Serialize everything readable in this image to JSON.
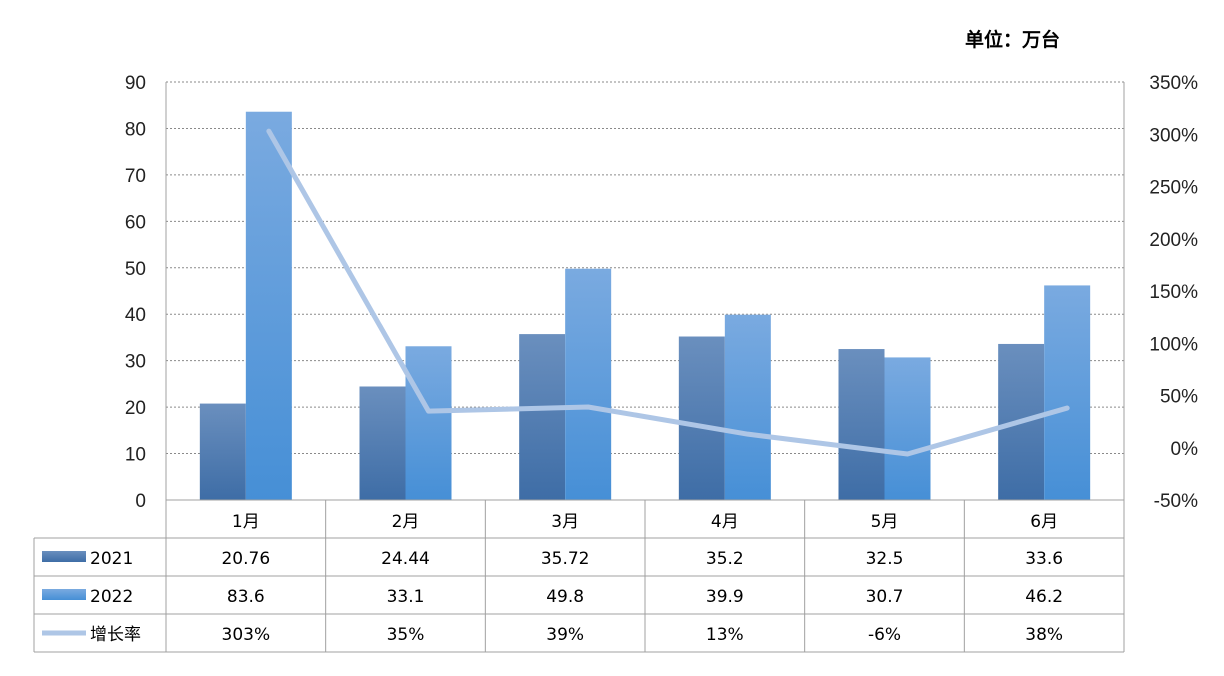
{
  "chart_data": {
    "type": "bar",
    "unit_label": "单位：万台",
    "categories": [
      "1月",
      "2月",
      "3月",
      "4月",
      "5月",
      "6月"
    ],
    "series": [
      {
        "name": "2021",
        "kind": "bar",
        "color": "#4472A8",
        "values": [
          20.76,
          24.44,
          35.72,
          35.2,
          32.5,
          33.6
        ],
        "labels": [
          "20.76",
          "24.44",
          "35.72",
          "35.2",
          "32.5",
          "33.6"
        ]
      },
      {
        "name": "2022",
        "kind": "bar",
        "color": "#5B9BD5",
        "values": [
          83.6,
          33.1,
          49.8,
          39.9,
          30.7,
          46.2
        ],
        "labels": [
          "83.6",
          "33.1",
          "49.8",
          "39.9",
          "30.7",
          "46.2"
        ]
      },
      {
        "name": "增长率",
        "kind": "line",
        "axis": "right",
        "color": "#AEC6E6",
        "values": [
          303,
          35,
          39,
          13,
          -6,
          38
        ],
        "labels": [
          "303%",
          "35%",
          "39%",
          "13%",
          "-6%",
          "38%"
        ]
      }
    ],
    "y_left": {
      "min": 0,
      "max": 90,
      "ticks": [
        "0",
        "10",
        "20",
        "30",
        "40",
        "50",
        "60",
        "70",
        "80",
        "90"
      ]
    },
    "y_right": {
      "min": -50,
      "max": 350,
      "ticks": [
        "-50%",
        "0%",
        "50%",
        "100%",
        "150%",
        "200%",
        "250%",
        "300%",
        "350%"
      ]
    },
    "grid": true,
    "legend": "data-table"
  }
}
